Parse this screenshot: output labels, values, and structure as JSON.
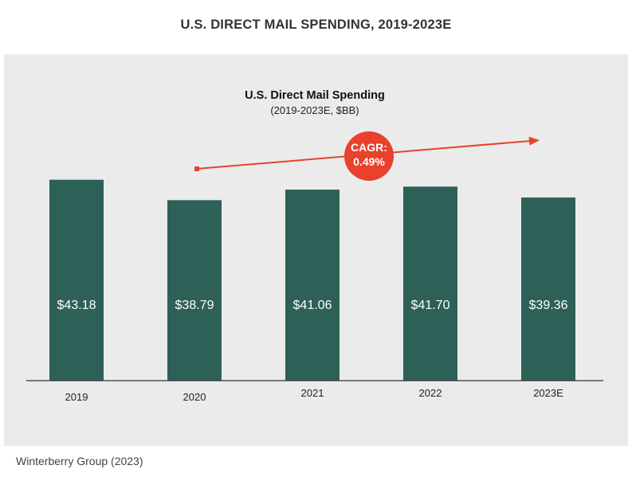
{
  "page": {
    "title": "U.S. DIRECT MAIL SPENDING, 2019-2023E",
    "source": "Winterberry Group (2023)"
  },
  "colors": {
    "bar": "#2d6157",
    "accent": "#e8412c",
    "panel": "#ebebeb",
    "axis": "#333333"
  },
  "chart_data": {
    "type": "bar",
    "title": "U.S. Direct Mail Spending",
    "subtitle": "(2019-2023E, $BB)",
    "categories": [
      "2019",
      "2020",
      "2021",
      "2022",
      "2023E"
    ],
    "values": [
      43.18,
      38.79,
      41.06,
      41.7,
      39.36
    ],
    "data_labels": [
      "$43.18",
      "$38.79",
      "$41.06",
      "$41.70",
      "$39.36"
    ],
    "xlabel": "",
    "ylabel": "",
    "ylim": [
      0,
      44.5
    ],
    "grid": false,
    "annotation": {
      "label_line1": "CAGR:",
      "label_line2": "0.49%",
      "type": "trend-arrow",
      "from_category": "2020",
      "to_category": "2023E"
    }
  }
}
